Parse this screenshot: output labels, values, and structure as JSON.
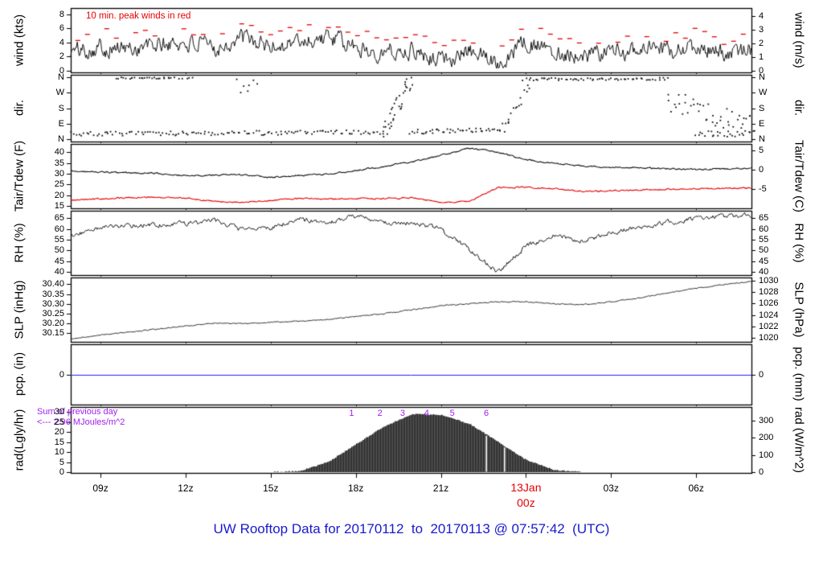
{
  "title": {
    "text": "UW Rooftop Data for 20170112  to  20170113 @ 07:57:42  (UTC)",
    "color": "#1a1acd",
    "y": 648
  },
  "colors": {
    "axis": "#000000",
    "trace_black": "#111111",
    "trace_red": "#e60000",
    "peak_red": "#e60000",
    "pcp_blue": "#2222ee",
    "purple": "#a020f0",
    "title_blue": "#1a1acd"
  },
  "x_axis": {
    "start_hour": 7.95,
    "end_hour": 31.95,
    "ticks": [
      {
        "t": 9,
        "label": "09z"
      },
      {
        "t": 12,
        "label": "12z"
      },
      {
        "t": 15,
        "label": "15z"
      },
      {
        "t": 18,
        "label": "18z"
      },
      {
        "t": 21,
        "label": "21z"
      },
      {
        "t": 24,
        "label": "00z",
        "date_label": "13Jan",
        "highlight": true
      },
      {
        "t": 27,
        "label": "03z"
      },
      {
        "t": 30,
        "label": "06z"
      }
    ]
  },
  "chart_data": {
    "type": "line",
    "x_unit": "hours UTC from 07:57 12Jan2017",
    "x_hours": [
      8,
      9,
      10,
      11,
      12,
      13,
      14,
      15,
      16,
      17,
      18,
      19,
      20,
      21,
      22,
      23,
      24,
      25,
      26,
      27,
      28,
      29,
      30,
      31,
      32
    ],
    "panels": [
      {
        "name": "wind",
        "kind": "wind",
        "ylabel_left": "wind (kts)",
        "ylabel_right": "wind (m/s)",
        "ylim": [
          -0.25,
          8.9
        ],
        "yticks_left": [
          {
            "v": 0,
            "label": "0"
          },
          {
            "v": 2,
            "label": "2"
          },
          {
            "v": 4,
            "label": "4"
          },
          {
            "v": 6,
            "label": "6"
          },
          {
            "v": 8,
            "label": "8"
          }
        ],
        "yticks_right": [
          {
            "v": 0,
            "label": "0"
          },
          {
            "v": 1.944,
            "label": "1"
          },
          {
            "v": 3.889,
            "label": "2"
          },
          {
            "v": 5.833,
            "label": "3"
          },
          {
            "v": 7.778,
            "label": "4"
          }
        ],
        "peak_note": "10 min. peak winds in red",
        "series_values": [
          2.8,
          3.4,
          3.1,
          3.6,
          3.9,
          3.2,
          4.6,
          3.4,
          4.2,
          4.7,
          3.3,
          2.6,
          3.0,
          1.6,
          2.7,
          1.3,
          4.1,
          2.9,
          2.1,
          2.6,
          3.1,
          2.7,
          3.3,
          2.4,
          3.0
        ],
        "noise_amp": 1.15,
        "peaks": {
          "offset": 1.3,
          "jitter": 1.5,
          "interval_hours": 0.34
        }
      },
      {
        "name": "direction",
        "kind": "dir",
        "ylabel_left": "dir.",
        "ylabel_right": "dir.",
        "ylim": [
          -12,
          372
        ],
        "yticks_left": [
          {
            "v": 0,
            "label": "N"
          },
          {
            "v": 90,
            "label": "E"
          },
          {
            "v": 180,
            "label": "S"
          },
          {
            "v": 270,
            "label": "W"
          },
          {
            "v": 360,
            "label": "N"
          }
        ],
        "yticks_right": [
          {
            "v": 0,
            "label": "N"
          },
          {
            "v": 90,
            "label": "E"
          },
          {
            "v": 180,
            "label": "S"
          },
          {
            "v": 270,
            "label": "W"
          },
          {
            "v": 360,
            "label": "N"
          }
        ],
        "segments": [
          {
            "t0": 8.0,
            "t1": 19.1,
            "d0": 32,
            "d1": 42,
            "spread": 13,
            "n": 130
          },
          {
            "t0": 9.6,
            "t1": 11.6,
            "d0": 353,
            "d1": 355,
            "spread": 5,
            "n": 26
          },
          {
            "t0": 11.8,
            "t1": 12.3,
            "d0": 352,
            "d1": 352,
            "spread": 4,
            "n": 5
          },
          {
            "t0": 13.8,
            "t1": 14.5,
            "d0": 300,
            "d1": 300,
            "spread": 50,
            "n": 7
          },
          {
            "t0": 19.0,
            "t1": 19.95,
            "d0": 60,
            "d1": 345,
            "spread": 55,
            "n": 34
          },
          {
            "t0": 19.9,
            "t1": 23.2,
            "d0": 45,
            "d1": 55,
            "spread": 14,
            "n": 44
          },
          {
            "t0": 23.2,
            "t1": 24.1,
            "d0": 65,
            "d1": 310,
            "spread": 30,
            "n": 16
          },
          {
            "t0": 23.9,
            "t1": 29.0,
            "d0": 347,
            "d1": 349,
            "spread": 7,
            "n": 60
          },
          {
            "t0": 29.0,
            "t1": 32.0,
            "d0": 230,
            "d1": 70,
            "spread": 65,
            "n": 42
          },
          {
            "t0": 30.0,
            "t1": 32.0,
            "d0": 30,
            "d1": 35,
            "spread": 18,
            "n": 26
          }
        ]
      },
      {
        "name": "temperature-dewpoint",
        "kind": "multiline",
        "ylabel_left": "Tair/Tdew (F)",
        "ylabel_right": "Tair/Tdew (C)",
        "ylim": [
          14,
          43.8
        ],
        "yticks_left": [
          {
            "v": 15,
            "label": "15"
          },
          {
            "v": 20,
            "label": "20"
          },
          {
            "v": 25,
            "label": "25"
          },
          {
            "v": 30,
            "label": "30"
          },
          {
            "v": 35,
            "label": "35"
          },
          {
            "v": 40,
            "label": "40"
          }
        ],
        "yticks_right": [
          {
            "v": 23,
            "label": "-5"
          },
          {
            "v": 32,
            "label": "0"
          },
          {
            "v": 41,
            "label": "5"
          }
        ],
        "series": [
          {
            "name": "Tair",
            "color": "#111111",
            "noise_amp": 0.3,
            "values": [
              31.2,
              30.8,
              30.3,
              30.2,
              29.0,
              29.3,
              29.5,
              28.3,
              29.3,
              29.8,
              31.5,
              33.5,
              35.5,
              38.5,
              41.8,
              40.0,
              36.5,
              34.8,
              33.5,
              33.0,
              32.8,
              32.3,
              32.0,
              32.3,
              32.5
            ]
          },
          {
            "name": "Tdew",
            "color": "#e60000",
            "noise_amp": 0.28,
            "values": [
              18.0,
              18.3,
              19.0,
              19.2,
              18.8,
              17.2,
              16.8,
              17.6,
              18.6,
              18.3,
              18.5,
              18.6,
              18.8,
              16.8,
              17.2,
              23.5,
              23.8,
              23.2,
              21.8,
              22.2,
              22.5,
              22.8,
              23.0,
              23.2,
              23.3
            ]
          }
        ]
      },
      {
        "name": "relative-humidity",
        "kind": "line",
        "ylabel_left": "RH (%)",
        "ylabel_right": "RH (%)",
        "ylim": [
          38.5,
          68.5
        ],
        "yticks_left": [
          {
            "v": 40,
            "label": "40"
          },
          {
            "v": 45,
            "label": "45"
          },
          {
            "v": 50,
            "label": "50"
          },
          {
            "v": 55,
            "label": "55"
          },
          {
            "v": 60,
            "label": "60"
          },
          {
            "v": 65,
            "label": "65"
          }
        ],
        "yticks_right": [
          {
            "v": 40,
            "label": "40"
          },
          {
            "v": 45,
            "label": "45"
          },
          {
            "v": 50,
            "label": "50"
          },
          {
            "v": 55,
            "label": "55"
          },
          {
            "v": 60,
            "label": "60"
          },
          {
            "v": 65,
            "label": "65"
          }
        ],
        "series_values": [
          57,
          60.5,
          61.5,
          62,
          62.5,
          64,
          59.5,
          60.5,
          64.5,
          63,
          66,
          62.5,
          63,
          60,
          50,
          40,
          52,
          57,
          54,
          58,
          61,
          63,
          65,
          66,
          66.5
        ],
        "noise_amp": 1.0
      },
      {
        "name": "sea-level-pressure",
        "kind": "line",
        "ylabel_left": "SLP (inHg)",
        "ylabel_right": "SLP (hPa)",
        "ylim": [
          30.105,
          30.435
        ],
        "yticks_left": [
          {
            "v": 30.15,
            "label": "30.15"
          },
          {
            "v": 30.2,
            "label": "30.20"
          },
          {
            "v": 30.25,
            "label": "30.25"
          },
          {
            "v": 30.3,
            "label": "30.30"
          },
          {
            "v": 30.35,
            "label": "30.35"
          },
          {
            "v": 30.4,
            "label": "30.40"
          }
        ],
        "yticks_right": [
          {
            "v": 30.124,
            "label": "1020"
          },
          {
            "v": 30.183,
            "label": "1022"
          },
          {
            "v": 30.242,
            "label": "1024"
          },
          {
            "v": 30.301,
            "label": "1026"
          },
          {
            "v": 30.36,
            "label": "1028"
          },
          {
            "v": 30.419,
            "label": "1030"
          }
        ],
        "series_values": [
          30.12,
          30.14,
          30.155,
          30.17,
          30.185,
          30.2,
          30.2,
          30.205,
          30.21,
          30.22,
          30.235,
          30.25,
          30.27,
          30.29,
          30.3,
          30.31,
          30.31,
          30.3,
          30.295,
          30.31,
          30.33,
          30.355,
          30.38,
          30.4,
          30.415
        ],
        "noise_amp": 0.0025
      },
      {
        "name": "precipitation",
        "kind": "pcp",
        "ylabel_left": "pcp. (in)",
        "ylabel_right": "pcp. (mm)",
        "ylim": [
          -1,
          1
        ],
        "yticks_left": [
          {
            "v": 0,
            "label": "0"
          }
        ],
        "yticks_right": [
          {
            "v": 0,
            "label": "0"
          }
        ],
        "value": 0
      },
      {
        "name": "solar-radiation",
        "kind": "rad",
        "ylabel_left": "rad(Lgly/hr)",
        "ylabel_right": "rad (W/m^2)",
        "ylim": [
          -0.4,
          32.5
        ],
        "yticks_left": [
          {
            "v": 0,
            "label": "0"
          },
          {
            "v": 5,
            "label": "5"
          },
          {
            "v": 10,
            "label": "10"
          },
          {
            "v": 15,
            "label": "15"
          },
          {
            "v": 20,
            "label": "20"
          },
          {
            "v": 25,
            "label": "25"
          },
          {
            "v": 30,
            "label": "30"
          }
        ],
        "yticks_right": [
          {
            "v": 0,
            "label": "0"
          },
          {
            "v": 8.6,
            "label": "100"
          },
          {
            "v": 17.2,
            "label": "200"
          },
          {
            "v": 25.8,
            "label": "300"
          }
        ],
        "series_values": [
          0,
          0,
          0,
          0,
          0,
          0,
          0,
          0,
          0.5,
          5,
          14,
          23,
          29,
          28.5,
          24,
          15,
          6,
          1,
          0,
          0,
          0,
          0,
          0,
          0,
          0
        ],
        "gaps_t": [
          22.6,
          23.25
        ],
        "markers": [
          {
            "t": 17.85,
            "label": "1"
          },
          {
            "t": 18.85,
            "label": "2"
          },
          {
            "t": 19.65,
            "label": "3"
          },
          {
            "t": 20.5,
            "label": "4"
          },
          {
            "t": 21.4,
            "label": "5"
          },
          {
            "t": 22.6,
            "label": "6"
          }
        ],
        "sum_note_line1": "Sum of previous day",
        "sum_note_line2": "<--- 2.96 MJoules/m^2"
      }
    ]
  }
}
